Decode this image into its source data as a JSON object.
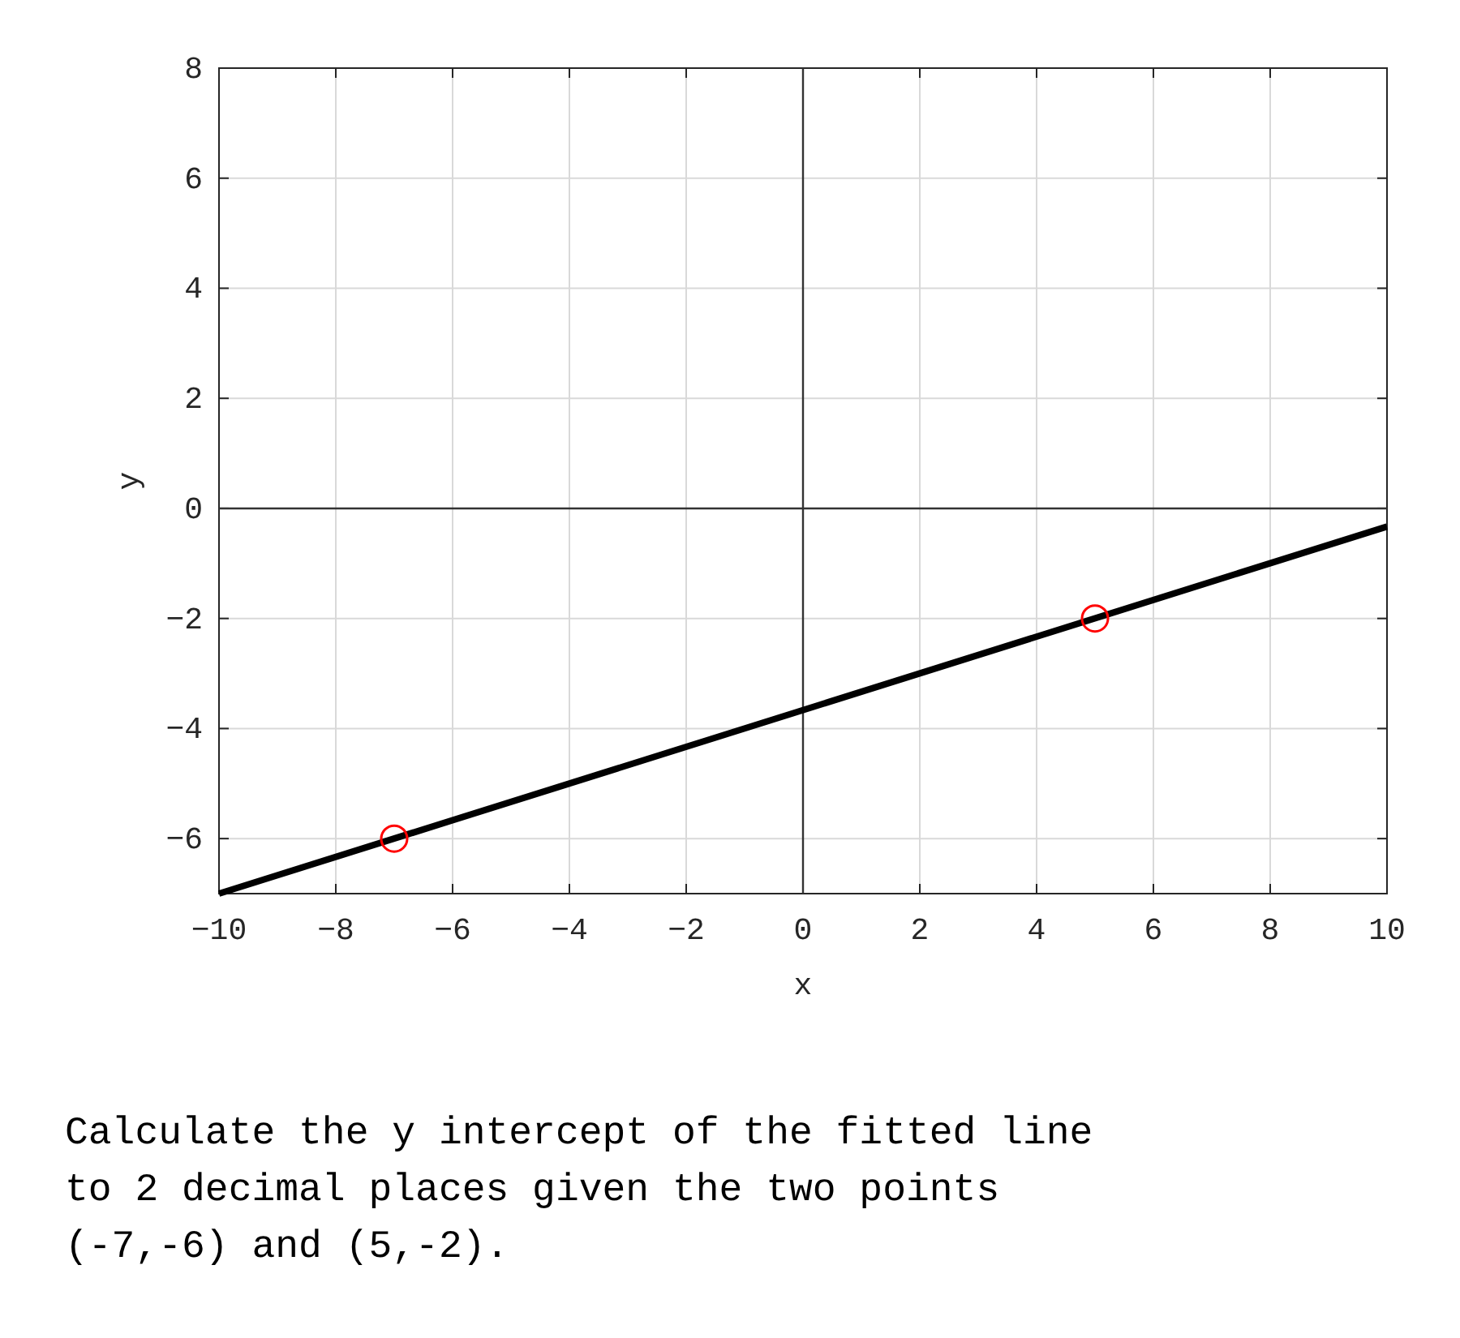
{
  "chart_data": {
    "type": "line",
    "xlabel": "x",
    "ylabel": "y",
    "xlim": [
      -10,
      10
    ],
    "xticks": [
      -10,
      -8,
      -6,
      -4,
      -2,
      0,
      2,
      4,
      6,
      8,
      10
    ],
    "ylim": [
      -7,
      8
    ],
    "yticks": [
      -6,
      -4,
      -2,
      0,
      2,
      4,
      6,
      8
    ],
    "grid": true,
    "series": [
      {
        "type": "line",
        "color": "#000000",
        "x": [
          -10,
          10
        ],
        "values": [
          -7,
          -0.33
        ],
        "marker": "none"
      },
      {
        "type": "scatter",
        "color": "#ff0000",
        "x": [
          -7,
          5
        ],
        "values": [
          -6,
          -2
        ],
        "marker": "circle"
      }
    ],
    "annotations": [
      "Calculate the y intercept of the fitted line to 2 decimal places given the two points (-7,-6) and (5,-2)."
    ]
  }
}
